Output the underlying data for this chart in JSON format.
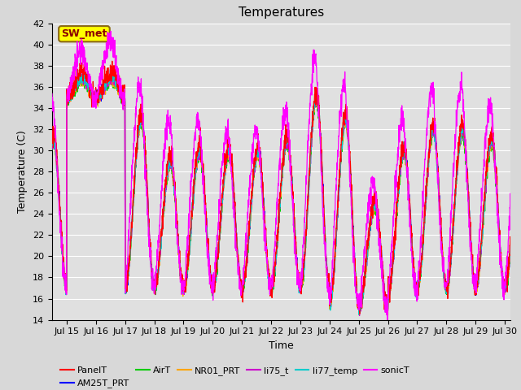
{
  "title": "Temperatures",
  "xlabel": "Time",
  "ylabel": "Temperature (C)",
  "ylim": [
    14,
    42
  ],
  "xlim_days": [
    14.5,
    30.2
  ],
  "xtick_positions": [
    15,
    16,
    17,
    18,
    19,
    20,
    21,
    22,
    23,
    24,
    25,
    26,
    27,
    28,
    29,
    30
  ],
  "xtick_labels": [
    "Jul 15",
    "Jul 16",
    "Jul 17",
    "Jul 18",
    "Jul 19",
    "Jul 20",
    "Jul 21",
    "Jul 22",
    "Jul 23",
    "Jul 24",
    "Jul 25",
    "Jul 26",
    "Jul 27",
    "Jul 28",
    "Jul 29",
    "Jul 30"
  ],
  "series_colors": {
    "PanelT": "#ff0000",
    "AM25T_PRT": "#0000ff",
    "AirT": "#00cc00",
    "NR01_PRT": "#ffa500",
    "li75_t": "#cc00cc",
    "li77_temp": "#00cccc",
    "sonicT": "#ff00ff"
  },
  "annotation_text": "SW_met",
  "annotation_bg": "#ffff00",
  "annotation_border": "#8B6914",
  "background_color": "#e0e0e0",
  "grid_color": "#ffffff",
  "fig_bg": "#d8d8d8",
  "title_fontsize": 11,
  "axis_fontsize": 9,
  "tick_fontsize": 8,
  "legend_fontsize": 8,
  "yticks": [
    14,
    16,
    18,
    20,
    22,
    24,
    26,
    28,
    30,
    32,
    34,
    36,
    38,
    40,
    42
  ],
  "day_peaks": {
    "15": {
      "main": 37,
      "sonic": 39.5
    },
    "16": {
      "main": 37,
      "sonic": 40.5
    },
    "17": {
      "main": 33,
      "sonic": 36.5
    },
    "18": {
      "main": 29,
      "sonic": 33
    },
    "19": {
      "main": 30,
      "sonic": 33
    },
    "20": {
      "main": 30,
      "sonic": 32
    },
    "21": {
      "main": 30,
      "sonic": 32
    },
    "22": {
      "main": 31,
      "sonic": 34
    },
    "23": {
      "main": 35,
      "sonic": 39
    },
    "24": {
      "main": 33,
      "sonic": 36.5
    },
    "25": {
      "main": 25,
      "sonic": 27
    },
    "26": {
      "main": 30,
      "sonic": 33
    },
    "27": {
      "main": 32,
      "sonic": 36
    },
    "28": {
      "main": 32,
      "sonic": 36
    },
    "29": {
      "main": 31,
      "sonic": 34.5
    },
    "30": {
      "main": 31,
      "sonic": 34.5
    }
  }
}
